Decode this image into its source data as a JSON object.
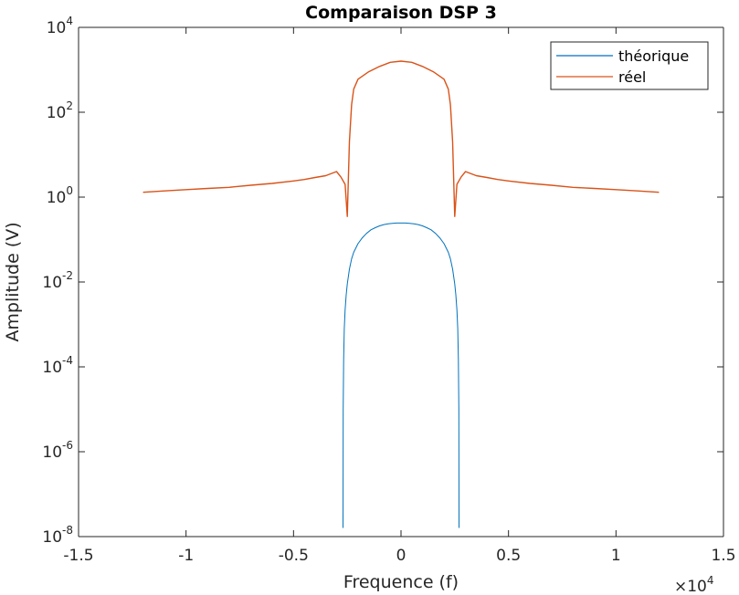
{
  "chart_data": {
    "type": "line",
    "title": "Comparaison DSP 3",
    "xlabel": "Frequence (f)",
    "ylabel": "Amplitude (V)",
    "x_multiplier_base": "×10",
    "x_multiplier_exp": "4",
    "xlim": [
      -15000,
      15000
    ],
    "ylim": [
      1e-08,
      10000
    ],
    "yscale": "log",
    "xticks": [
      -15000,
      -10000,
      -5000,
      0,
      5000,
      10000,
      15000
    ],
    "xtick_labels": [
      "-1.5",
      "-1",
      "-0.5",
      "0",
      "0.5",
      "1",
      "1.5"
    ],
    "yticks": [
      1e-08,
      1e-06,
      0.0001,
      0.01,
      1,
      100,
      10000
    ],
    "ytick_labels": [
      {
        "base": "10",
        "exp": "-8"
      },
      {
        "base": "10",
        "exp": "-6"
      },
      {
        "base": "10",
        "exp": "-4"
      },
      {
        "base": "10",
        "exp": "-2"
      },
      {
        "base": "10",
        "exp": "0"
      },
      {
        "base": "10",
        "exp": "2"
      },
      {
        "base": "10",
        "exp": "4"
      }
    ],
    "grid": false,
    "legend_position": "top-right",
    "series": [
      {
        "name": "théorique",
        "color": "#0072BD",
        "x": [
          -2700,
          -2690,
          -2670,
          -2640,
          -2600,
          -2550,
          -2500,
          -2400,
          -2300,
          -2200,
          -2000,
          -1800,
          -1600,
          -1400,
          -1200,
          -1000,
          -800,
          -600,
          -400,
          -200,
          0,
          200,
          400,
          600,
          800,
          1000,
          1200,
          1400,
          1600,
          1800,
          2000,
          2200,
          2300,
          2400,
          2500,
          2550,
          2600,
          2640,
          2670,
          2690,
          2700
        ],
        "y": [
          1.6e-08,
          1e-05,
          0.00015,
          0.0008,
          0.0022,
          0.005,
          0.009,
          0.02,
          0.035,
          0.05,
          0.08,
          0.11,
          0.14,
          0.17,
          0.19,
          0.21,
          0.225,
          0.235,
          0.24,
          0.245,
          0.245,
          0.245,
          0.24,
          0.235,
          0.225,
          0.21,
          0.19,
          0.17,
          0.14,
          0.11,
          0.08,
          0.05,
          0.035,
          0.02,
          0.009,
          0.005,
          0.0022,
          0.0008,
          0.00015,
          1e-05,
          1.6e-08
        ]
      },
      {
        "name": "réel",
        "color": "#D95319",
        "x": [
          -12000,
          -11000,
          -10000,
          -9000,
          -8000,
          -7000,
          -6000,
          -5000,
          -4500,
          -4000,
          -3500,
          -3000,
          -2800,
          -2600,
          -2500,
          -2400,
          -2300,
          -2200,
          -2000,
          -1500,
          -1000,
          -500,
          0,
          500,
          1000,
          1500,
          2000,
          2200,
          2300,
          2400,
          2500,
          2600,
          2800,
          3000,
          3500,
          4000,
          4500,
          5000,
          6000,
          7000,
          8000,
          9000,
          10000,
          11000,
          12000
        ],
        "y": [
          1.3,
          1.4,
          1.5,
          1.6,
          1.7,
          1.9,
          2.1,
          2.4,
          2.6,
          2.9,
          3.2,
          4.0,
          3.0,
          2.0,
          0.35,
          20,
          150,
          350,
          600,
          900,
          1200,
          1500,
          1600,
          1500,
          1200,
          900,
          600,
          350,
          150,
          20,
          0.35,
          2.0,
          3.0,
          4.0,
          3.2,
          2.9,
          2.6,
          2.4,
          2.1,
          1.9,
          1.7,
          1.6,
          1.5,
          1.4,
          1.3
        ]
      }
    ]
  }
}
